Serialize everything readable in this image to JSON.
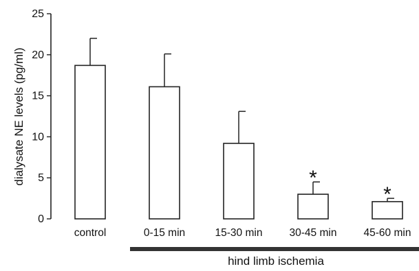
{
  "chart_data": {
    "type": "bar",
    "title": "",
    "xlabel": "",
    "ylabel": "dialysate NE levels (pg/ml)",
    "ylim": [
      0,
      25
    ],
    "yticks": [
      "0",
      "5",
      "10",
      "15",
      "20",
      "25"
    ],
    "categories": [
      "control",
      "0-15 min",
      "15-30 min",
      "30-45 min",
      "45-60 min"
    ],
    "values": [
      18.7,
      16.1,
      9.2,
      3.0,
      2.1
    ],
    "errors": [
      3.3,
      4.0,
      3.9,
      1.5,
      0.4
    ],
    "significance": [
      "",
      "",
      "",
      "*",
      "*"
    ],
    "bracket": {
      "label": "hind limb ischemia",
      "from_category": "0-15 min",
      "to_category": "45-60 min"
    },
    "grid": false,
    "colors": {
      "bar_fill": "#ffffff",
      "bar_stroke": "#222222",
      "bracket": "#333333"
    }
  }
}
